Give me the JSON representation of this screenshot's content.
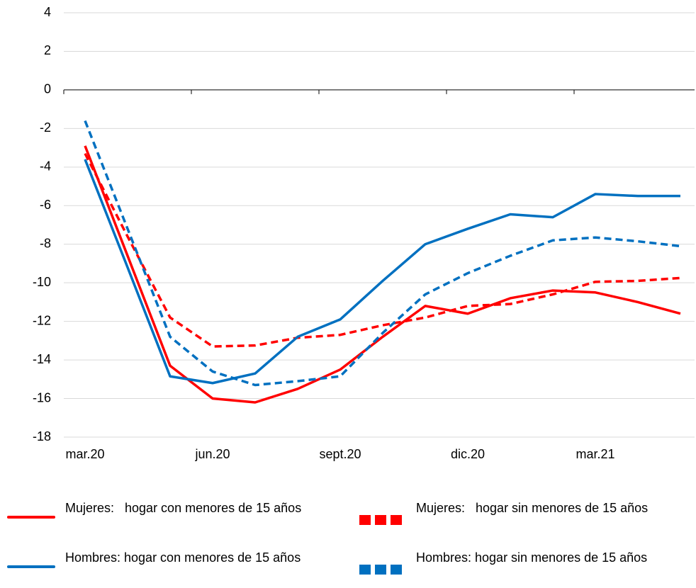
{
  "chart_data": {
    "type": "line",
    "categories": [
      "mar.20",
      null,
      null,
      "jun.20",
      null,
      null,
      "sept.20",
      null,
      null,
      "dic.20",
      null,
      null,
      "mar.21",
      null,
      null
    ],
    "ylim": [
      -18,
      4
    ],
    "yticks": [
      -18,
      -16,
      -14,
      -12,
      -10,
      -8,
      -6,
      -4,
      -2,
      0,
      2,
      4
    ],
    "grid": true,
    "series": [
      {
        "name": "Mujeres:   hogar con menores de 15 años",
        "color": "#ff0000",
        "dash": false,
        "values": [
          -2.9,
          -8.6,
          -14.3,
          -16.0,
          -16.2,
          -15.5,
          -14.5,
          -12.8,
          -11.2,
          -11.6,
          -10.8,
          -10.4,
          -10.5,
          -11.0,
          -11.6
        ]
      },
      {
        "name": "Mujeres:   hogar sin menores de 15 años",
        "color": "#ff0000",
        "dash": true,
        "values": [
          -3.3,
          -7.6,
          -11.8,
          -13.3,
          -13.25,
          -12.85,
          -12.7,
          -12.2,
          -11.8,
          -11.2,
          -11.1,
          -10.6,
          -9.95,
          -9.9,
          -9.75
        ]
      },
      {
        "name": "Hombres: hogar con menores de 15 años",
        "color": "#0070c0",
        "dash": false,
        "values": [
          -3.6,
          -9.2,
          -14.85,
          -15.2,
          -14.7,
          -12.8,
          -11.9,
          -9.9,
          -8.0,
          -7.2,
          -6.45,
          -6.6,
          -5.4,
          -5.5,
          -5.5
        ]
      },
      {
        "name": "Hombres: hogar sin menores de 15 años",
        "color": "#0070c0",
        "dash": true,
        "values": [
          -1.6,
          -7.2,
          -12.8,
          -14.6,
          -15.3,
          -15.1,
          -14.85,
          -12.6,
          -10.6,
          -9.5,
          -8.6,
          -7.8,
          -7.65,
          -7.85,
          -8.1
        ]
      }
    ]
  }
}
